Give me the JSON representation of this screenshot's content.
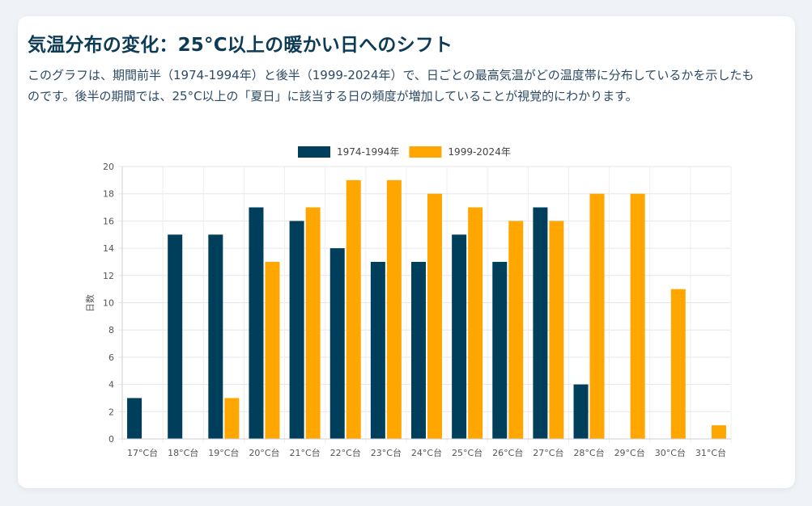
{
  "header": {
    "title": "気温分布の変化：25°C以上の暖かい日へのシフト",
    "description": "このグラフは、期間前半（1974-1994年）と後半（1999-2024年）で、日ごとの最高気温がどの温度帯に分布しているかを示したものです。後半の期間では、25°C以上の「夏日」に該当する日の頻度が増加していることが視覚的にわかります。"
  },
  "chart_data": {
    "type": "bar",
    "title": "",
    "xlabel": "",
    "ylabel": "日数",
    "ylim": [
      0,
      20
    ],
    "yticks": [
      0,
      2,
      4,
      6,
      8,
      10,
      12,
      14,
      16,
      18,
      20
    ],
    "grid": true,
    "legend_position": "top",
    "categories": [
      "17°C台",
      "18°C台",
      "19°C台",
      "20°C台",
      "21°C台",
      "22°C台",
      "23°C台",
      "24°C台",
      "25°C台",
      "26°C台",
      "27°C台",
      "28°C台",
      "29°C台",
      "30°C台",
      "31°C台"
    ],
    "series": [
      {
        "name": "1974-1994年",
        "color": "#003f5c",
        "values": [
          3,
          15,
          15,
          17,
          16,
          14,
          13,
          13,
          15,
          13,
          17,
          4,
          0,
          0,
          0
        ]
      },
      {
        "name": "1999-2024年",
        "color": "#ffa600",
        "values": [
          0,
          0,
          3,
          13,
          17,
          19,
          19,
          18,
          17,
          16,
          16,
          18,
          18,
          11,
          1
        ]
      }
    ]
  }
}
